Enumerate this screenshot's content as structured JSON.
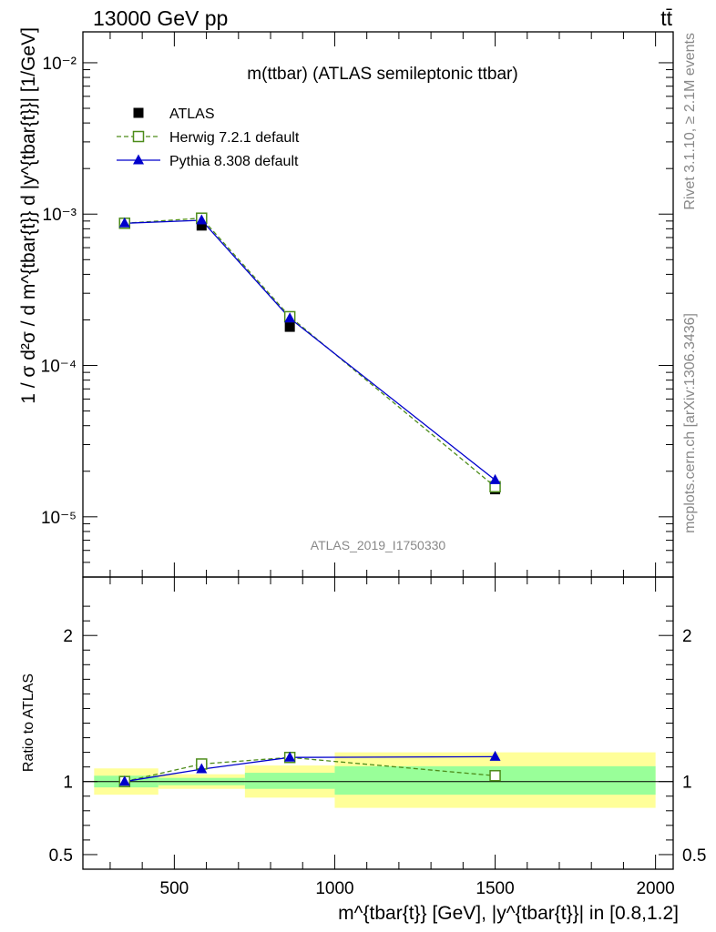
{
  "header": {
    "left": "13000 GeV pp",
    "right": "tt̄"
  },
  "side_text": {
    "rivet": "Rivet 3.1.10, ≥ 2.1M events",
    "mcplots": "mcplots.cern.ch [arXiv:1306.3436]"
  },
  "chart_data": [
    {
      "panel": "main",
      "type": "scatter",
      "title": "m(ttbar) (ATLAS semileptonic ttbar)",
      "watermark": "ATLAS_2019_I1750330",
      "ylabel": "1 / σ d²σ / d m^{tbar{t}} d |y^{tbar{t}}| [1/GeV]",
      "yscale": "log",
      "ylim": [
        4e-06,
        0.016
      ],
      "xlim": [
        215,
        2055
      ],
      "y_tick_labels": [
        "10⁻²",
        "10⁻³",
        "10⁻⁴",
        "10⁻⁵"
      ],
      "legend_placement": "top-left",
      "series": [
        {
          "name": "ATLAS",
          "marker": "square-filled",
          "color": "#000000",
          "x": [
            345,
            585,
            860,
            1500
          ],
          "y": [
            0.00087,
            0.00084,
            0.00018,
            1.52e-05
          ]
        },
        {
          "name": "Herwig 7.2.1 default",
          "marker": "square-open",
          "line": "dashed",
          "color": "#4d8c1a",
          "x": [
            345,
            585,
            860,
            1500
          ],
          "y": [
            0.00087,
            0.00094,
            0.00021,
            1.58e-05
          ]
        },
        {
          "name": "Pythia 8.308 default",
          "marker": "triangle-filled",
          "line": "solid",
          "color": "#0000cc",
          "x": [
            345,
            585,
            860,
            1500
          ],
          "y": [
            0.00087,
            0.00091,
            0.000205,
            1.75e-05
          ]
        }
      ]
    },
    {
      "panel": "ratio",
      "type": "scatter",
      "ylabel": "Ratio to ATLAS",
      "xlabel": "m^{tbar{t}} [GeV], |y^{tbar{t}}| in [0.8,1.2]",
      "ylim": [
        0.4,
        2.4
      ],
      "xlim": [
        215,
        2055
      ],
      "x_ticks": [
        500,
        1000,
        1500,
        2000
      ],
      "x_tick_labels": [
        "500",
        "1000",
        "1500",
        "2000"
      ],
      "y_ticks": [
        0.5,
        1,
        2
      ],
      "y_tick_labels": [
        "0.5",
        "1",
        "2"
      ],
      "bins": [
        {
          "lo": 250,
          "hi": 450,
          "stat": [
            0.96,
            1.04
          ],
          "total": [
            0.91,
            1.09
          ]
        },
        {
          "lo": 450,
          "hi": 720,
          "stat": [
            0.975,
            1.025
          ],
          "total": [
            0.95,
            1.05
          ]
        },
        {
          "lo": 720,
          "hi": 1000,
          "stat": [
            0.95,
            1.06
          ],
          "total": [
            0.89,
            1.11
          ]
        },
        {
          "lo": 1000,
          "hi": 2000,
          "stat": [
            0.91,
            1.105
          ],
          "total": [
            0.82,
            1.2
          ]
        }
      ],
      "series": [
        {
          "name": "Herwig 7.2.1 default",
          "marker": "square-open",
          "line": "dashed",
          "color": "#4d8c1a",
          "x": [
            345,
            585,
            860,
            1500
          ],
          "y": [
            1.0,
            1.12,
            1.165,
            1.04
          ]
        },
        {
          "name": "Pythia 8.308 default",
          "marker": "triangle-filled",
          "line": "solid",
          "color": "#0000cc",
          "x": [
            345,
            585,
            860,
            1500
          ],
          "y": [
            1.0,
            1.085,
            1.165,
            1.17
          ]
        }
      ]
    }
  ]
}
